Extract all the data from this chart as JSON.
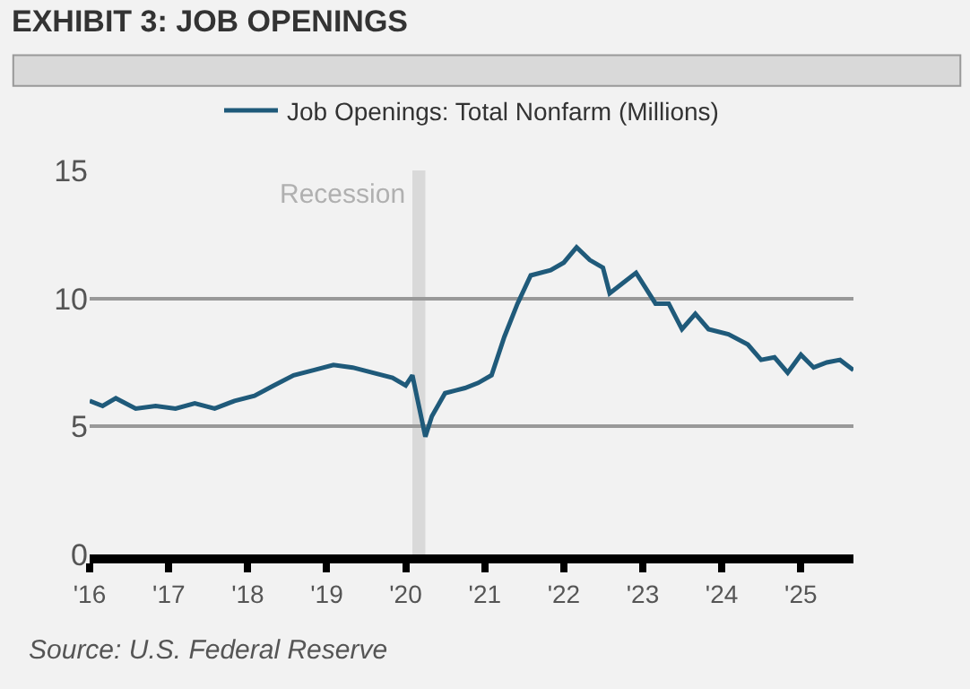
{
  "chart_data": {
    "type": "line",
    "title": "EXHIBIT 3: JOB OPENINGS",
    "annotations": [
      "Source: U.S. Federal Reserve"
    ],
    "x": [
      "2016-01",
      "2016-03",
      "2016-05",
      "2016-08",
      "2016-11",
      "2017-02",
      "2017-05",
      "2017-08",
      "2017-11",
      "2018-02",
      "2018-05",
      "2018-08",
      "2018-11",
      "2019-02",
      "2019-05",
      "2019-08",
      "2019-11",
      "2020-01",
      "2020-02",
      "2020-04",
      "2020-05",
      "2020-07",
      "2020-10",
      "2020-12",
      "2021-02",
      "2021-04",
      "2021-06",
      "2021-08",
      "2021-11",
      "2022-01",
      "2022-03",
      "2022-05",
      "2022-07",
      "2022-08",
      "2022-10",
      "2022-12",
      "2023-03",
      "2023-05",
      "2023-07",
      "2023-09",
      "2023-11",
      "2024-02",
      "2024-05",
      "2024-07",
      "2024-09",
      "2024-11",
      "2025-01",
      "2025-03",
      "2025-05",
      "2025-07",
      "2025-09"
    ],
    "series": [
      {
        "name": "Job Openings: Total Nonfarm (Millions)",
        "color": "#1f5a7a",
        "values": [
          6.0,
          5.8,
          6.1,
          5.7,
          5.8,
          5.7,
          5.9,
          5.7,
          6.0,
          6.2,
          6.6,
          7.0,
          7.2,
          7.4,
          7.3,
          7.1,
          6.9,
          6.6,
          7.0,
          4.6,
          5.4,
          6.3,
          6.5,
          6.7,
          7.0,
          8.5,
          9.8,
          10.9,
          11.1,
          11.4,
          12.0,
          11.5,
          11.2,
          10.2,
          10.6,
          11.0,
          9.8,
          9.8,
          8.8,
          9.4,
          8.8,
          8.6,
          8.2,
          7.6,
          7.7,
          7.1,
          7.8,
          7.3,
          7.5,
          7.6,
          7.2
        ]
      }
    ],
    "xlim": [
      "2016-01",
      "2025-09"
    ],
    "xticks": [
      {
        "value": "2016-01",
        "label": "'16"
      },
      {
        "value": "2017-01",
        "label": "'17"
      },
      {
        "value": "2018-01",
        "label": "'18"
      },
      {
        "value": "2019-01",
        "label": "'19"
      },
      {
        "value": "2020-01",
        "label": "'20"
      },
      {
        "value": "2021-01",
        "label": "'21"
      },
      {
        "value": "2022-01",
        "label": "'22"
      },
      {
        "value": "2023-01",
        "label": "'23"
      },
      {
        "value": "2024-01",
        "label": "'24"
      },
      {
        "value": "2025-01",
        "label": "'25"
      }
    ],
    "ylim": [
      0,
      15
    ],
    "yticks": [
      0,
      5,
      10,
      15
    ],
    "bands": [
      {
        "axis": "x",
        "from": "2020-02",
        "to": "2020-04",
        "label": "Recession",
        "color": "#d9d9d9"
      }
    ],
    "grid": "y",
    "legend": "top",
    "marker": "none",
    "line_style": "solid"
  }
}
